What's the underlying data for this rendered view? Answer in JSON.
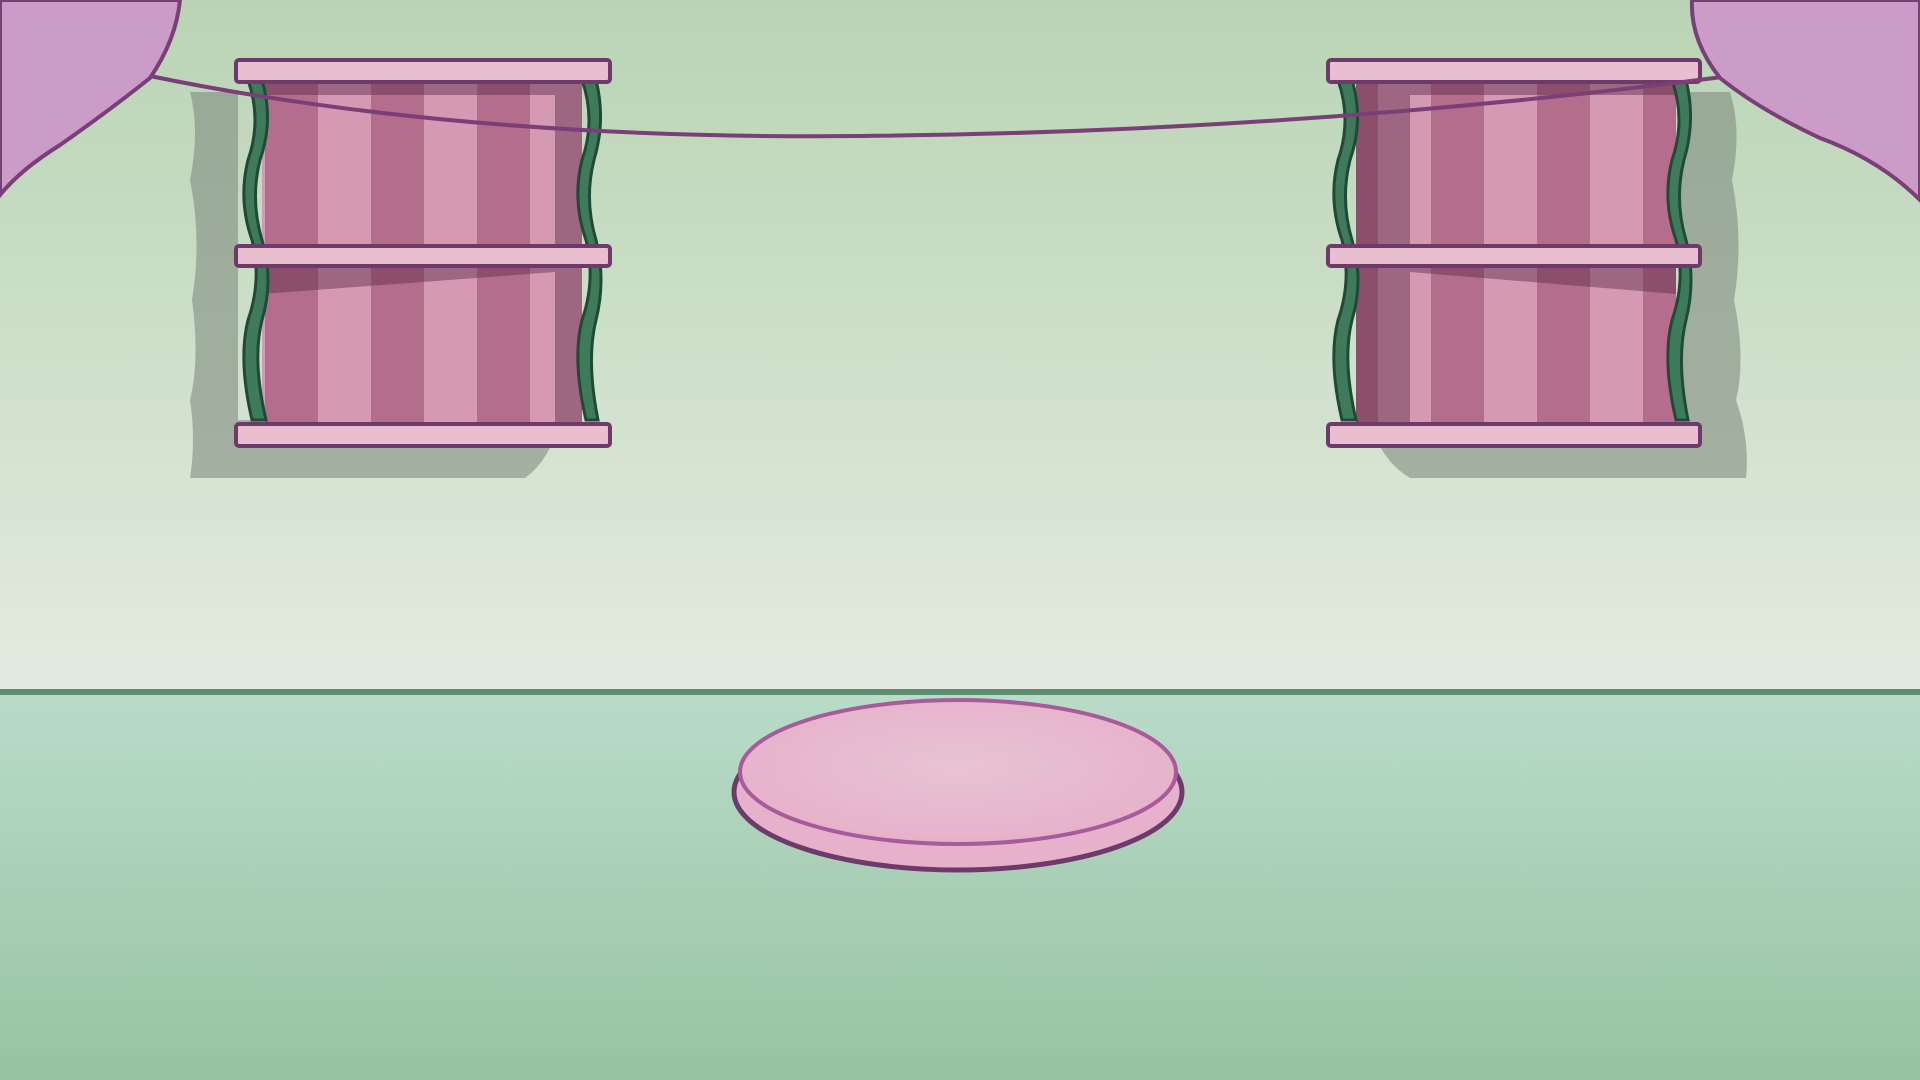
{
  "scene": {
    "type": "empty-room-backdrop",
    "colors": {
      "wall_top": "#b9d4b4",
      "wall_bottom": "#e3ebe0",
      "floor_top": "#b7dbc6",
      "floor_bottom": "#98c4a3",
      "baseboard": "#5e8c6e",
      "outline": "#6e3a6c",
      "window_frame": "#e9bfd0",
      "curtain_light": "#d59ab2",
      "curtain_dark": "#b46e8b",
      "ivy": "#3f7a5a",
      "balloon": "#cc9cc9",
      "string": "#7a3f78",
      "rug": "#e9b9cf",
      "rug_edge": "#a85a9c",
      "shadow": "#7a857a"
    },
    "elements": {
      "windows": [
        "window-left",
        "window-right"
      ],
      "balloons": [
        "balloon-left",
        "balloon-right"
      ],
      "rug": "oval-pink-rug",
      "string": "hanging-string"
    }
  }
}
